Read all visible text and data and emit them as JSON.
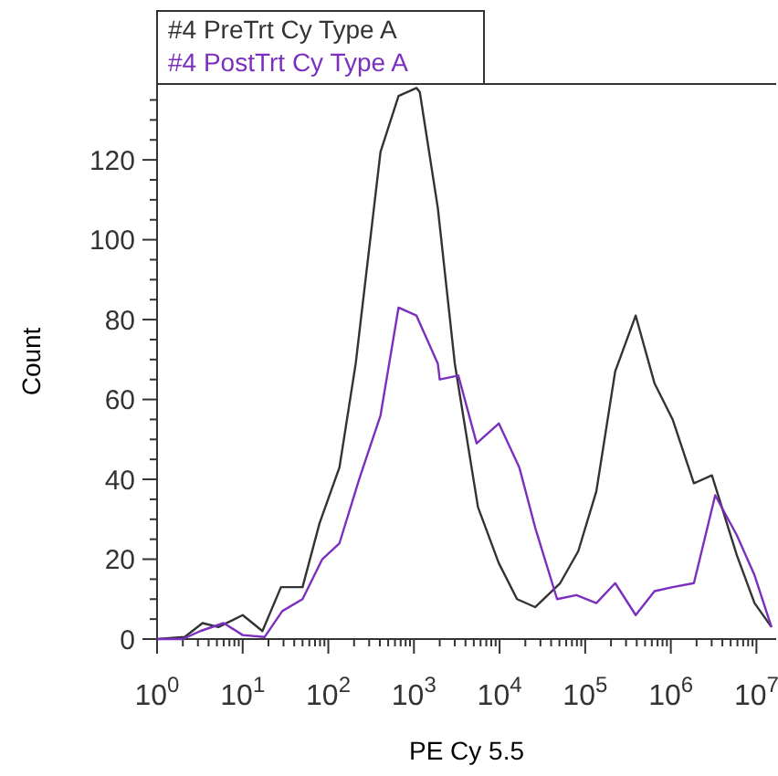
{
  "chart_data": {
    "type": "line",
    "xlabel": "PE Cy 5.5",
    "ylabel": "Count",
    "log": "x",
    "legend": "top left",
    "grid": false,
    "marker": "none",
    "line_style": "solid",
    "xlim": [
      1,
      17000000
    ],
    "ylim": [
      0,
      139
    ],
    "xticks": [
      {
        "value": 1,
        "label": "10$^{0}$"
      },
      {
        "value": 2,
        "label": null
      },
      {
        "value": 3,
        "label": null
      },
      {
        "value": 4,
        "label": null
      },
      {
        "value": 5,
        "label": null
      },
      {
        "value": 6,
        "label": null
      },
      {
        "value": 7,
        "label": null
      },
      {
        "value": 8,
        "label": null
      },
      {
        "value": 9,
        "label": null
      },
      {
        "value": 10,
        "label": "10$^{1}$"
      },
      {
        "value": 20,
        "label": null
      },
      {
        "value": 30,
        "label": null
      },
      {
        "value": 40,
        "label": null
      },
      {
        "value": 50,
        "label": null
      },
      {
        "value": 60,
        "label": null
      },
      {
        "value": 70,
        "label": null
      },
      {
        "value": 80,
        "label": null
      },
      {
        "value": 90,
        "label": null
      },
      {
        "value": 100,
        "label": "10$^{2}$"
      },
      {
        "value": 200,
        "label": null
      },
      {
        "value": 300,
        "label": null
      },
      {
        "value": 400,
        "label": null
      },
      {
        "value": 500,
        "label": null
      },
      {
        "value": 600,
        "label": null
      },
      {
        "value": 700,
        "label": null
      },
      {
        "value": 800,
        "label": null
      },
      {
        "value": 900,
        "label": null
      },
      {
        "value": 1000,
        "label": "10$^{3}$"
      },
      {
        "value": 2000,
        "label": null
      },
      {
        "value": 3000,
        "label": null
      },
      {
        "value": 4000,
        "label": null
      },
      {
        "value": 5000,
        "label": null
      },
      {
        "value": 6000,
        "label": null
      },
      {
        "value": 7000,
        "label": null
      },
      {
        "value": 8000,
        "label": null
      },
      {
        "value": 9000,
        "label": null
      },
      {
        "value": 10000,
        "label": "10$^{4}$"
      },
      {
        "value": 20000,
        "label": null
      },
      {
        "value": 30000,
        "label": null
      },
      {
        "value": 40000,
        "label": null
      },
      {
        "value": 50000,
        "label": null
      },
      {
        "value": 60000,
        "label": null
      },
      {
        "value": 70000,
        "label": null
      },
      {
        "value": 80000,
        "label": null
      },
      {
        "value": 90000,
        "label": null
      },
      {
        "value": 100000,
        "label": "10$^{5}$"
      },
      {
        "value": 200000,
        "label": null
      },
      {
        "value": 300000,
        "label": null
      },
      {
        "value": 400000,
        "label": null
      },
      {
        "value": 500000,
        "label": null
      },
      {
        "value": 600000,
        "label": null
      },
      {
        "value": 700000,
        "label": null
      },
      {
        "value": 800000,
        "label": null
      },
      {
        "value": 900000,
        "label": null
      },
      {
        "value": 1000000,
        "label": "10$^{6}$"
      },
      {
        "value": 2000000,
        "label": null
      },
      {
        "value": 3000000,
        "label": null
      },
      {
        "value": 4000000,
        "label": null
      },
      {
        "value": 5000000,
        "label": null
      },
      {
        "value": 6000000,
        "label": null
      },
      {
        "value": 7000000,
        "label": null
      },
      {
        "value": 8000000,
        "label": null
      },
      {
        "value": 9000000,
        "label": null
      },
      {
        "value": 10000000,
        "label": "10$^{7}$"
      }
    ],
    "yticks": [
      0,
      {
        "value": 5,
        "label": null
      },
      {
        "value": 10,
        "label": null
      },
      {
        "value": 15,
        "label": null
      },
      20,
      {
        "value": 25,
        "label": null
      },
      {
        "value": 30,
        "label": null
      },
      {
        "value": 35,
        "label": null
      },
      40,
      {
        "value": 45,
        "label": null
      },
      {
        "value": 50,
        "label": null
      },
      {
        "value": 55,
        "label": null
      },
      60,
      {
        "value": 65,
        "label": null
      },
      {
        "value": 70,
        "label": null
      },
      {
        "value": 75,
        "label": null
      },
      80,
      {
        "value": 85,
        "label": null
      },
      {
        "value": 90,
        "label": null
      },
      {
        "value": 95,
        "label": null
      },
      100,
      {
        "value": 105,
        "label": null
      },
      {
        "value": 110,
        "label": null
      },
      {
        "value": 115,
        "label": null
      },
      120,
      {
        "value": 125,
        "label": null
      },
      {
        "value": 130,
        "label": null
      },
      {
        "value": 135,
        "label": null
      }
    ],
    "series": [
      {
        "name": "#4 PreTrt Cy Type A",
        "color": "#333333",
        "x": [
          1,
          2.1,
          3.4,
          5.2,
          10,
          17,
          28,
          50,
          79,
          135,
          209,
          407,
          661,
          1070,
          1170,
          1900,
          3000,
          5600,
          9800,
          16000,
          26000,
          51000,
          83000,
          135000,
          224000,
          389000,
          646000,
          1050000,
          1860000,
          3020000,
          5900000,
          9500000,
          15000000
        ],
        "values": [
          0,
          0.5,
          4,
          3,
          6,
          2,
          13,
          13,
          29,
          43,
          69,
          122,
          136,
          138,
          137,
          108,
          69,
          33,
          19,
          10,
          8,
          14,
          22,
          37,
          67,
          81,
          64,
          55,
          39,
          41,
          21,
          9,
          3
        ]
      },
      {
        "name": "#4 PostTrt Cy Type A",
        "color": "#7b2fbe",
        "x": [
          1,
          2,
          3.2,
          6,
          10,
          18,
          29,
          50,
          85,
          135,
          229,
          407,
          661,
          1070,
          1900,
          2000,
          3300,
          5400,
          9800,
          17000,
          26000,
          47000,
          79000,
          135000,
          224000,
          389000,
          646000,
          1050000,
          1860000,
          3300000,
          5900000,
          9500000,
          15000000
        ],
        "values": [
          0,
          0,
          2,
          4,
          1,
          0.5,
          7,
          10,
          20,
          24,
          40,
          56,
          83,
          81,
          69,
          65,
          66,
          49,
          54,
          43,
          28,
          10,
          11,
          9,
          14,
          6,
          12,
          13,
          14,
          36,
          26,
          16,
          3
        ]
      }
    ]
  }
}
